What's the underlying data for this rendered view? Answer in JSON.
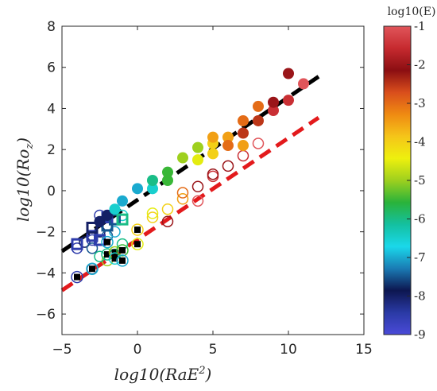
{
  "chart_data": {
    "type": "scatter",
    "xlabel": "log10(RaE",
    "xlabel_sup": "2",
    "xlabel_close": ")",
    "ylabel": "log10(Ro",
    "ylabel_sub": "z",
    "ylabel_close": ")",
    "xlim": [
      -5,
      15
    ],
    "ylim": [
      -7,
      8
    ],
    "xticks": [
      -5,
      0,
      5,
      10,
      15
    ],
    "yticks": [
      -6,
      -4,
      -2,
      0,
      2,
      4,
      6,
      8
    ],
    "xtick_labels": [
      "−5",
      "0",
      "5",
      "10",
      "15"
    ],
    "ytick_labels": [
      "−6",
      "−4",
      "−2",
      "0",
      "2",
      "4",
      "6",
      "8"
    ],
    "grid": false,
    "colorbar": {
      "title": "log10(E)",
      "range": [
        -9,
        -1
      ],
      "ticks": [
        -1,
        -2,
        -3,
        -4,
        -5,
        -6,
        -7,
        -8,
        -9
      ],
      "tick_labels": [
        "-1",
        "-2",
        "-3",
        "-4",
        "-5",
        "-6",
        "-7",
        "-8",
        "-9"
      ],
      "colormap": [
        "#e0555a",
        "#c62a2f",
        "#8b0e12",
        "#d94e1c",
        "#ef8a12",
        "#f5c519",
        "#eef00e",
        "#9ed01e",
        "#2ab33a",
        "#14c0a0",
        "#1ad8ea",
        "#1a7bb4",
        "#0d1650",
        "#2a3aa5",
        "#4a4ad8"
      ]
    },
    "fit_lines": [
      {
        "color": "#000000",
        "x": [
          -5,
          12
        ],
        "y": [
          -2.95,
          5.55
        ]
      },
      {
        "color": "#e31a1c",
        "x": [
          -5,
          12
        ],
        "y": [
          -4.85,
          3.55
        ]
      }
    ],
    "filled_circles": [
      {
        "x": -2.5,
        "y": -1.5,
        "e": -8
      },
      {
        "x": -2,
        "y": -1.2,
        "e": -8
      },
      {
        "x": -1.5,
        "y": -0.9,
        "e": -6.5
      },
      {
        "x": -1,
        "y": -0.5,
        "e": -7
      },
      {
        "x": 0,
        "y": 0.1,
        "e": -7
      },
      {
        "x": 1,
        "y": 0.1,
        "e": -6.5
      },
      {
        "x": 1,
        "y": 0.5,
        "e": -6
      },
      {
        "x": 2,
        "y": 0.5,
        "e": -5.5
      },
      {
        "x": 2,
        "y": 0.9,
        "e": -5.5
      },
      {
        "x": 3,
        "y": 1.6,
        "e": -5
      },
      {
        "x": 4,
        "y": 1.5,
        "e": -4.5
      },
      {
        "x": 4,
        "y": 2.1,
        "e": -5
      },
      {
        "x": 5,
        "y": 1.8,
        "e": -4
      },
      {
        "x": 5,
        "y": 2.3,
        "e": -4
      },
      {
        "x": 5,
        "y": 2.6,
        "e": -3.5
      },
      {
        "x": 6,
        "y": 2.6,
        "e": -3.5
      },
      {
        "x": 6,
        "y": 2.2,
        "e": -3
      },
      {
        "x": 7,
        "y": 2.8,
        "e": -2.5
      },
      {
        "x": 7,
        "y": 3.4,
        "e": -3
      },
      {
        "x": 7,
        "y": 2.2,
        "e": -3.5
      },
      {
        "x": 8,
        "y": 3.4,
        "e": -2.5
      },
      {
        "x": 8,
        "y": 4.1,
        "e": -3
      },
      {
        "x": 9,
        "y": 3.9,
        "e": -1.5
      },
      {
        "x": 9,
        "y": 4.3,
        "e": -2
      },
      {
        "x": 10,
        "y": 4.4,
        "e": -1.5
      },
      {
        "x": 10,
        "y": 5.7,
        "e": -2
      },
      {
        "x": 11,
        "y": 5.2,
        "e": -1
      }
    ],
    "open_circles": [
      {
        "x": -4,
        "y": -2.8,
        "e": -8.5
      },
      {
        "x": -3.5,
        "y": -2.5,
        "e": -8
      },
      {
        "x": -3,
        "y": -2.4,
        "e": -8.5
      },
      {
        "x": -3,
        "y": -2.8,
        "e": -7.5
      },
      {
        "x": -2.5,
        "y": -2.0,
        "e": -8
      },
      {
        "x": -2.5,
        "y": -1.2,
        "e": -8.5
      },
      {
        "x": -2,
        "y": -2.2,
        "e": -7.5
      },
      {
        "x": -2,
        "y": -1.2,
        "e": -8.5
      },
      {
        "x": -1.5,
        "y": -2.0,
        "e": -7
      },
      {
        "x": -1,
        "y": -1.2,
        "e": -6.5
      },
      {
        "x": -1,
        "y": -2.6,
        "e": -6
      },
      {
        "x": -1.5,
        "y": -3.1,
        "e": -6
      },
      {
        "x": -2,
        "y": -3.4,
        "e": -5
      },
      {
        "x": -2.5,
        "y": -3.2,
        "e": -6
      },
      {
        "x": -3,
        "y": -3.8,
        "e": -7.5
      },
      {
        "x": 1,
        "y": -1.3,
        "e": -4
      },
      {
        "x": 1,
        "y": -1.1,
        "e": -4.5
      },
      {
        "x": 2,
        "y": -1.5,
        "e": -2
      },
      {
        "x": 2,
        "y": -0.9,
        "e": -4
      },
      {
        "x": 3,
        "y": -0.4,
        "e": -3.5
      },
      {
        "x": 3,
        "y": -0.1,
        "e": -3
      },
      {
        "x": 4,
        "y": 0.2,
        "e": -2
      },
      {
        "x": 4,
        "y": -0.5,
        "e": -1
      },
      {
        "x": 5,
        "y": 0.7,
        "e": -1.5
      },
      {
        "x": 5,
        "y": 0.8,
        "e": -2
      },
      {
        "x": 6,
        "y": 1.2,
        "e": -2
      },
      {
        "x": 7,
        "y": 1.7,
        "e": -1.5
      },
      {
        "x": 8,
        "y": 2.3,
        "e": -1
      }
    ],
    "open_squares": [
      {
        "x": -3,
        "y": -2.2,
        "e": -8.5
      },
      {
        "x": -3,
        "y": -1.8,
        "e": -8
      },
      {
        "x": -2.5,
        "y": -2.4,
        "e": -8.5
      },
      {
        "x": -2,
        "y": -1.7,
        "e": -7.5
      },
      {
        "x": -2,
        "y": -1.3,
        "e": -8.5
      },
      {
        "x": -1.5,
        "y": -1.4,
        "e": -7.5
      },
      {
        "x": -1,
        "y": -1.4,
        "e": -6
      },
      {
        "x": -4,
        "y": -2.6,
        "e": -8.5
      }
    ],
    "black_squares": [
      {
        "x": -4,
        "y": -4.2,
        "e": -8.5
      },
      {
        "x": -2,
        "y": -2.5,
        "e": -7
      },
      {
        "x": -2,
        "y": -3.1,
        "e": -6
      },
      {
        "x": -1.5,
        "y": -3.0,
        "e": -5
      },
      {
        "x": -1.5,
        "y": -3.3,
        "e": -6.5
      },
      {
        "x": -1,
        "y": -2.9,
        "e": -5.5
      },
      {
        "x": -1,
        "y": -3.4,
        "e": -7
      },
      {
        "x": 0,
        "y": -1.9,
        "e": -4
      },
      {
        "x": 0,
        "y": -2.6,
        "e": -4.5
      },
      {
        "x": -3,
        "y": -3.8,
        "e": -7
      }
    ]
  }
}
